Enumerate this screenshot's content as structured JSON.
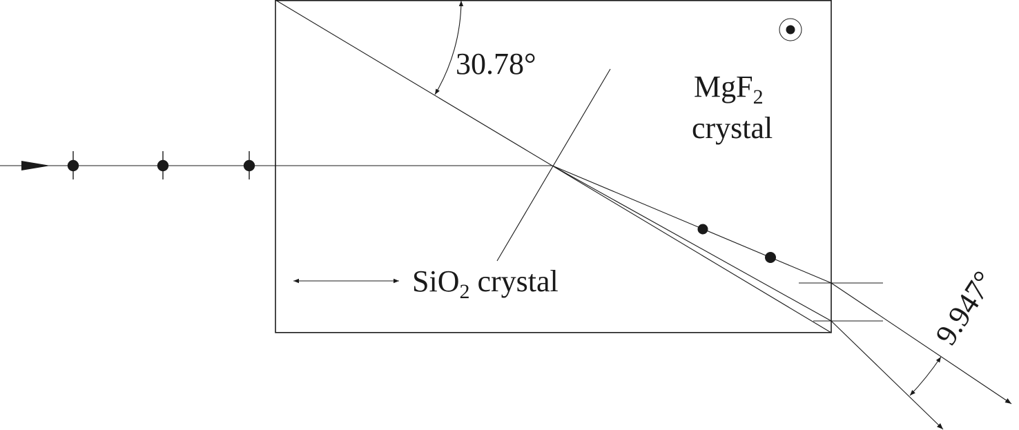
{
  "labels": {
    "angle_top": "30.78°",
    "angle_exit": "9.947°",
    "mgf2_main": "MgF",
    "mgf2_sub": "2",
    "mgf2_line2": "crystal",
    "sio2_main": "SiO",
    "sio2_sub": "2",
    "sio2_rest": " crystal"
  },
  "colors": {
    "ink": "#1a1a1a",
    "background": "#ffffff"
  },
  "icons": {
    "optic_axis_out_of_page": "circled-dot-icon",
    "optic_axis_in_plane": "double-arrow-icon",
    "polarization_dot": "dot-icon"
  }
}
